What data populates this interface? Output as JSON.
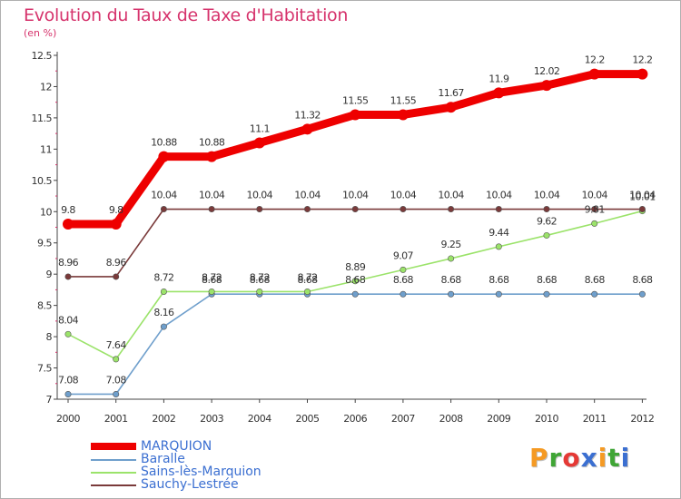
{
  "header": {
    "title": "Evolution du Taux de Taxe d'Habitation",
    "subtitle": "(en %)"
  },
  "brand": {
    "text": "Proxiti",
    "letter_colors": [
      "#f59a23",
      "#3fa535",
      "#e53935",
      "#3b6fd1",
      "#f59a23",
      "#3fa535",
      "#3b6fd1"
    ]
  },
  "chart_data": {
    "type": "line",
    "title": "Evolution du Taux de Taxe d'Habitation",
    "ylabel": "(en %)",
    "x": [
      "2000",
      "2001",
      "2002",
      "2003",
      "2004",
      "2005",
      "2006",
      "2007",
      "2008",
      "2009",
      "2010",
      "2011",
      "2012"
    ],
    "ylim": [
      7,
      12.5
    ],
    "yticks": [
      "7",
      "7.5",
      "8",
      "8.5",
      "9",
      "9.5",
      "10",
      "10.5",
      "11",
      "11.5",
      "12",
      "12.5"
    ],
    "grid": false,
    "legend_position": "bottom-left",
    "series": [
      {
        "name": "MARQUION",
        "color": "#ee0000",
        "values": [
          9.8,
          9.8,
          10.88,
          10.88,
          11.1,
          11.32,
          11.55,
          11.55,
          11.67,
          11.9,
          12.02,
          12.2,
          12.2
        ],
        "labels": [
          "9.8",
          "9.8",
          "10.88",
          "10.88",
          "11.1",
          "11.32",
          "11.55",
          "11.55",
          "11.67",
          "11.9",
          "12.02",
          "12.2",
          "12.2"
        ]
      },
      {
        "name": "Baralle",
        "color": "#6f9fcc",
        "values": [
          7.08,
          7.08,
          8.16,
          8.68,
          8.68,
          8.68,
          8.68,
          8.68,
          8.68,
          8.68,
          8.68,
          8.68,
          8.68
        ],
        "labels": [
          "7.08",
          "7.08",
          "8.16",
          "8.68",
          "8.68",
          "8.68",
          "8.68",
          "8.68",
          "8.68",
          "8.68",
          "8.68",
          "8.68",
          "8.68"
        ]
      },
      {
        "name": "Sains-lès-Marquion",
        "color": "#9be36a",
        "values": [
          8.04,
          7.64,
          8.72,
          8.72,
          8.72,
          8.72,
          8.89,
          9.07,
          9.25,
          9.44,
          9.62,
          9.81,
          10.01
        ],
        "labels": [
          "8.04",
          "7.64",
          "8.72",
          "8.72",
          "8.72",
          "8.72",
          "8.89",
          "9.07",
          "9.25",
          "9.44",
          "9.62",
          "9.81",
          "10.01"
        ]
      },
      {
        "name": "Sauchy-Lestrée",
        "color": "#7a3a3a",
        "values": [
          8.96,
          8.96,
          10.04,
          10.04,
          10.04,
          10.04,
          10.04,
          10.04,
          10.04,
          10.04,
          10.04,
          10.04,
          10.04
        ],
        "labels": [
          "8.96",
          "8.96",
          "10.04",
          "10.04",
          "10.04",
          "10.04",
          "10.04",
          "10.04",
          "10.04",
          "10.04",
          "10.04",
          "10.04",
          "10.04"
        ]
      }
    ]
  }
}
